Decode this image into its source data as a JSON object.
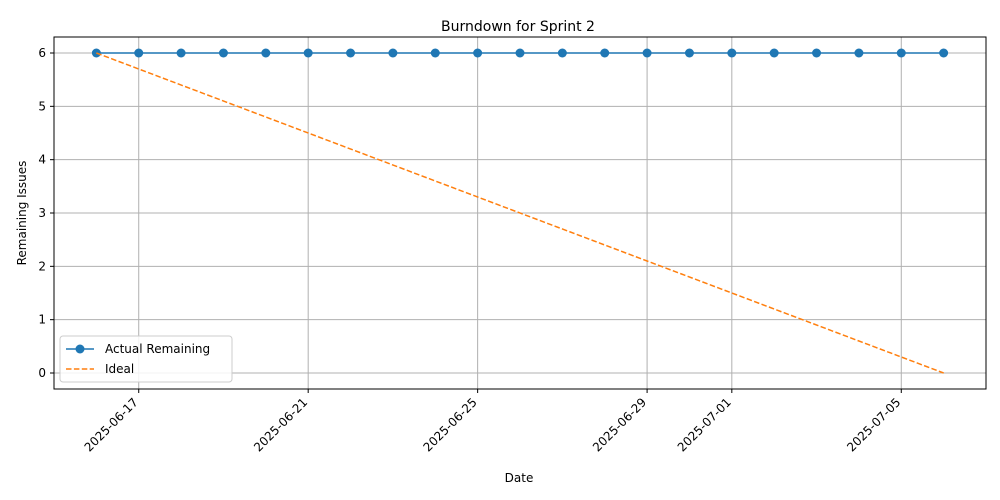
{
  "chart_data": {
    "type": "line",
    "title": "Burndown for Sprint 2",
    "xlabel": "Date",
    "ylabel": "Remaining Issues",
    "xlim": [
      "2025-06-15",
      "2025-07-07"
    ],
    "ylim": [
      -0.3,
      6.3
    ],
    "grid": true,
    "legend_position": "lower-left",
    "x_ticks": [
      "2025-06-17",
      "2025-06-21",
      "2025-06-25",
      "2025-06-29",
      "2025-07-01",
      "2025-07-05"
    ],
    "y_ticks": [
      0,
      1,
      2,
      3,
      4,
      5,
      6
    ],
    "series": [
      {
        "name": "Actual Remaining",
        "color": "#1f77b4",
        "style": "solid",
        "marker": "circle",
        "x": [
          "2025-06-16",
          "2025-06-17",
          "2025-06-18",
          "2025-06-19",
          "2025-06-20",
          "2025-06-21",
          "2025-06-22",
          "2025-06-23",
          "2025-06-24",
          "2025-06-25",
          "2025-06-26",
          "2025-06-27",
          "2025-06-28",
          "2025-06-29",
          "2025-06-30",
          "2025-07-01",
          "2025-07-02",
          "2025-07-03",
          "2025-07-04",
          "2025-07-05",
          "2025-07-06"
        ],
        "y": [
          6,
          6,
          6,
          6,
          6,
          6,
          6,
          6,
          6,
          6,
          6,
          6,
          6,
          6,
          6,
          6,
          6,
          6,
          6,
          6,
          6
        ]
      },
      {
        "name": "Ideal",
        "color": "#ff7f0e",
        "style": "dashed",
        "marker": "none",
        "x": [
          "2025-06-16",
          "2025-07-06"
        ],
        "y": [
          6,
          0
        ]
      }
    ]
  }
}
